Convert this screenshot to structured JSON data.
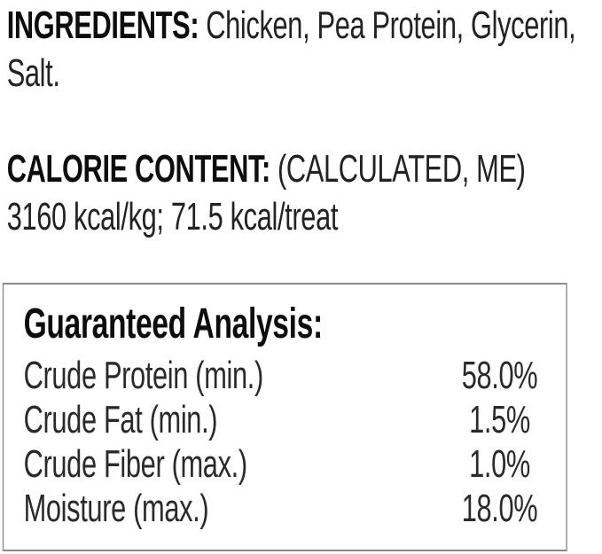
{
  "colors": {
    "background": "#ffffff",
    "text": "#1b1b1b",
    "bold_text": "#0d0d0d",
    "box_border": "#8a8a8a"
  },
  "ingredients": {
    "label": "INGREDIENTS:",
    "line1": "Chicken, Pea Protein, Glycerin,",
    "line2": "Salt."
  },
  "calorie": {
    "label": "CALORIE CONTENT:",
    "method": "(CALCULATED, ME)",
    "values": "3160 kcal/kg; 71.5 kcal/treat"
  },
  "guaranteed_analysis": {
    "title": "Guaranteed Analysis:",
    "rows": [
      {
        "label": "Crude Protein (min.)",
        "value": "58.0%"
      },
      {
        "label": "Crude Fat (min.)",
        "value": "1.5%"
      },
      {
        "label": "Crude Fiber (max.)",
        "value": "1.0%"
      },
      {
        "label": "Moisture (max.)",
        "value": "18.0%"
      }
    ]
  }
}
